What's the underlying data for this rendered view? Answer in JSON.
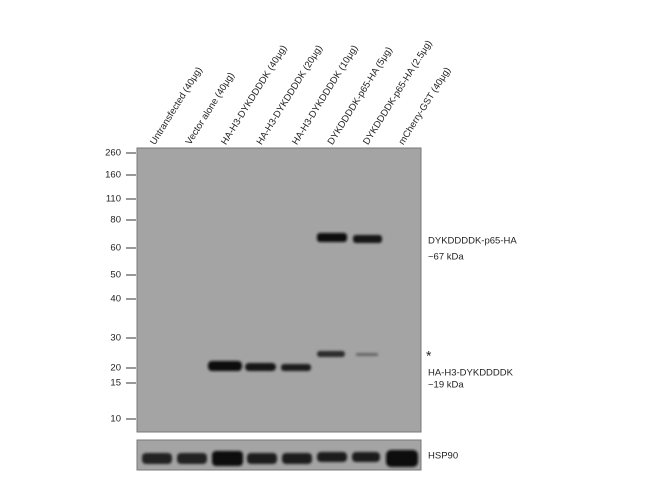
{
  "lanes": [
    "Untransfected (40μg)",
    "Vector alone (40μg)",
    "HA-H3-DYKDDDDK (40μg)",
    "HA-H3-DYKDDDDK (20μg)",
    "HA-H3-DYKDDDDK (10μg)",
    "DYKDDDDK-p65-HA (5μg)",
    "DYKDDDDK-p65-HA (2.5μg)",
    "mCherry-GST (40μg)"
  ],
  "markers": [
    260,
    160,
    110,
    80,
    60,
    50,
    40,
    30,
    20,
    15,
    10
  ],
  "annotations": {
    "p65_name": "DYKDDDDK-p65-HA",
    "p65_size": "~67 kDa",
    "asterisk": "*",
    "h3_name": "HA-H3-DYKDDDDK",
    "h3_size": "~19 kDa"
  },
  "loading_control": "HSP90"
}
